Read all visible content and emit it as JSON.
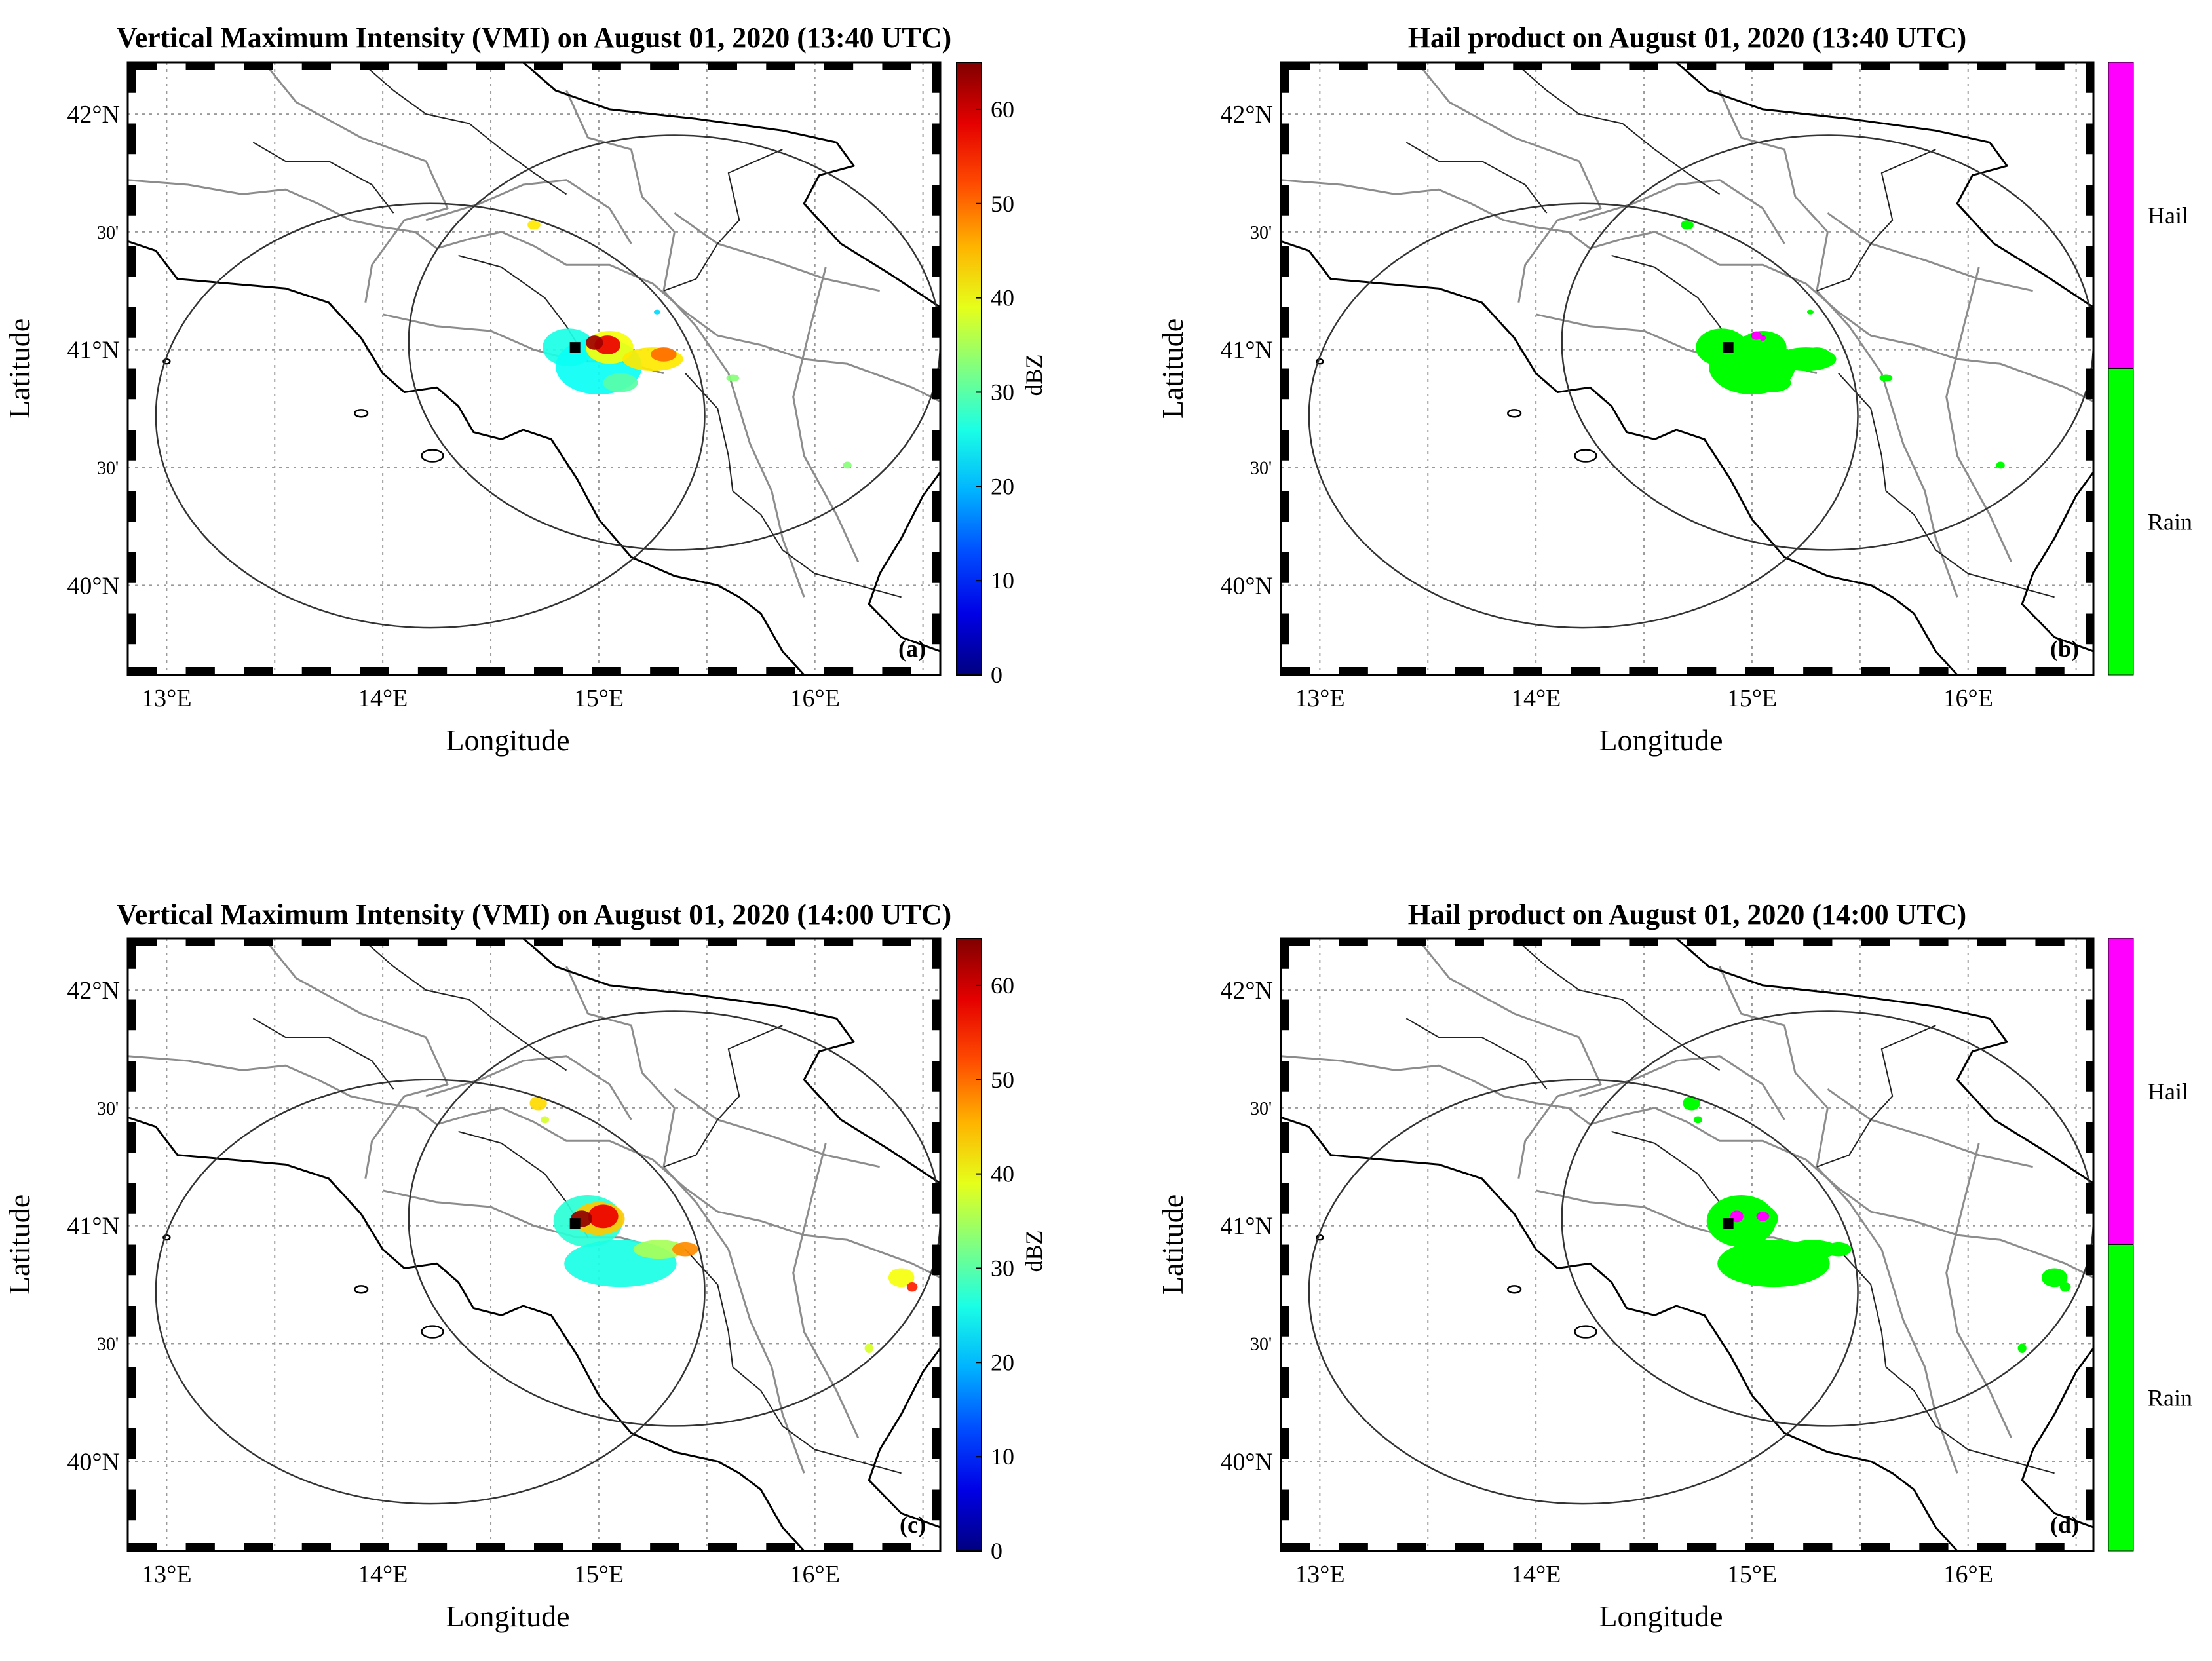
{
  "panels": [
    {
      "id": "a",
      "title": "Vertical Maximum Intensity (VMI) on August 01, 2020 (13:40 UTC)",
      "tag": "(a)",
      "product": "vmi",
      "colorbar": {
        "type": "continuous",
        "label": "dBZ",
        "ticks": [
          "0",
          "10",
          "20",
          "30",
          "40",
          "50",
          "60"
        ],
        "range": [
          0,
          65
        ]
      }
    },
    {
      "id": "b",
      "title": "Hail product on August 01, 2020 (13:40 UTC)",
      "tag": "(b)",
      "product": "hail",
      "colorbar": {
        "type": "categorical",
        "classes": [
          {
            "label": "Hail",
            "color": "#ff00ff"
          },
          {
            "label": "Rain",
            "color": "#00ff00"
          }
        ]
      }
    },
    {
      "id": "c",
      "title": "Vertical Maximum Intensity (VMI) on August 01, 2020 (14:00 UTC)",
      "tag": "(c)",
      "product": "vmi",
      "colorbar": {
        "type": "continuous",
        "label": "dBZ",
        "ticks": [
          "0",
          "10",
          "20",
          "30",
          "40",
          "50",
          "60"
        ],
        "range": [
          0,
          65
        ]
      }
    },
    {
      "id": "d",
      "title": "Hail product on August 01, 2020 (14:00 UTC)",
      "tag": "(d)",
      "product": "hail",
      "colorbar": {
        "type": "categorical",
        "classes": [
          {
            "label": "Hail",
            "color": "#ff00ff"
          },
          {
            "label": "Rain",
            "color": "#00ff00"
          }
        ]
      }
    }
  ],
  "axes": {
    "xlabel": "Longitude",
    "ylabel": "Latitude",
    "xticks": [
      "13°E",
      "14°E",
      "15°E",
      "16°E"
    ],
    "yticks": [
      "42°N",
      "41°N",
      "40°N"
    ],
    "yminor": [
      "30'",
      "30'"
    ]
  },
  "colors": {
    "hail": "#ff00ff",
    "rain": "#00ff00",
    "coast": "#000000",
    "borders": "#8c8c8c",
    "grid": "#9a9a9a"
  }
}
